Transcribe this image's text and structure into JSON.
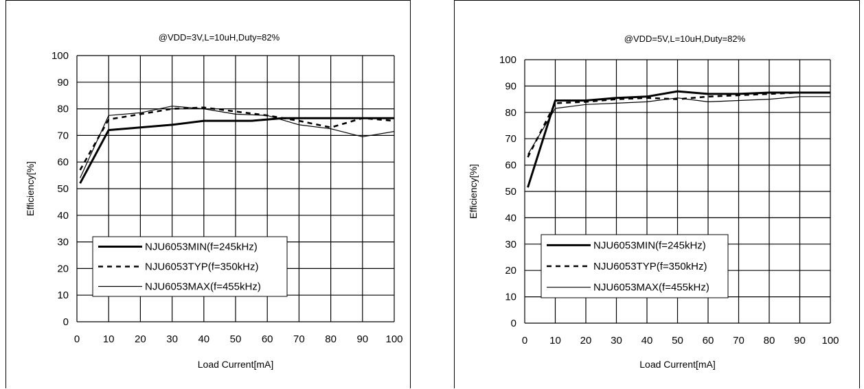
{
  "chart_data": [
    {
      "type": "line",
      "title": "@VDD=3V,L=10uH,Duty=82%",
      "xlabel": "Load Current[mA]",
      "ylabel": "Efficiency[%]",
      "xlim": [
        0,
        100
      ],
      "ylim": [
        0,
        100
      ],
      "xticks": [
        "0",
        "10",
        "20",
        "30",
        "40",
        "50",
        "60",
        "70",
        "80",
        "90",
        "100"
      ],
      "yticks": [
        "0",
        "10",
        "20",
        "30",
        "40",
        "50",
        "60",
        "70",
        "80",
        "90",
        "100"
      ],
      "grid": true,
      "legend_position": "bottom-left",
      "series": [
        {
          "name": "NJU6053MIN(f=245kHz)",
          "style": "thick",
          "x": [
            1,
            10,
            20,
            30,
            40,
            50,
            55,
            60,
            65,
            70,
            80,
            90,
            100
          ],
          "y": [
            52,
            72,
            73,
            74,
            75.5,
            75.5,
            75.5,
            76,
            76.5,
            76.5,
            76.5,
            76.5,
            76.5
          ]
        },
        {
          "name": "NJU6053TYP(f=350kHz)",
          "style": "dashed",
          "x": [
            1,
            10,
            20,
            30,
            40,
            50,
            60,
            70,
            80,
            90,
            100
          ],
          "y": [
            57,
            76,
            78,
            80,
            80.5,
            79,
            77.5,
            75.5,
            73,
            76.5,
            75.5
          ]
        },
        {
          "name": "NJU6053MAX(f=455kHz)",
          "style": "thin",
          "x": [
            1,
            10,
            20,
            30,
            40,
            50,
            60,
            70,
            80,
            90,
            100
          ],
          "y": [
            54,
            77.5,
            78.5,
            81,
            80,
            78,
            77.5,
            74,
            72.5,
            69.5,
            71.5
          ]
        }
      ]
    },
    {
      "type": "line",
      "title": "@VDD=5V,L=10uH,Duty=82%",
      "xlabel": "Load Current[mA]",
      "ylabel": "Efficiency[%]",
      "xlim": [
        0,
        100
      ],
      "ylim": [
        0,
        100
      ],
      "xticks": [
        "0",
        "10",
        "20",
        "30",
        "40",
        "50",
        "60",
        "70",
        "80",
        "90",
        "100"
      ],
      "yticks": [
        "0",
        "10",
        "20",
        "30",
        "40",
        "50",
        "60",
        "70",
        "80",
        "90",
        "100"
      ],
      "grid": true,
      "legend_position": "bottom-left",
      "series": [
        {
          "name": "NJU6053MIN(f=245kHz)",
          "style": "thick",
          "x": [
            1,
            10,
            20,
            30,
            40,
            50,
            60,
            70,
            80,
            90,
            100
          ],
          "y": [
            51.5,
            84.5,
            84.5,
            85.5,
            86,
            88,
            87,
            87,
            87.5,
            87.5,
            87.5
          ]
        },
        {
          "name": "NJU6053TYP(f=350kHz)",
          "style": "dashed",
          "x": [
            1,
            10,
            20,
            30,
            40,
            50,
            60,
            70,
            80,
            90,
            100
          ],
          "y": [
            63,
            83.5,
            84,
            85,
            85.5,
            85,
            86,
            86.5,
            87,
            87.5,
            87.5
          ]
        },
        {
          "name": "NJU6053MAX(f=455kHz)",
          "style": "thin",
          "x": [
            1,
            10,
            20,
            30,
            40,
            50,
            60,
            70,
            80,
            90,
            100
          ],
          "y": [
            64,
            81.5,
            83,
            83.5,
            84,
            85.5,
            84,
            84.5,
            85,
            86,
            86
          ]
        }
      ]
    }
  ]
}
